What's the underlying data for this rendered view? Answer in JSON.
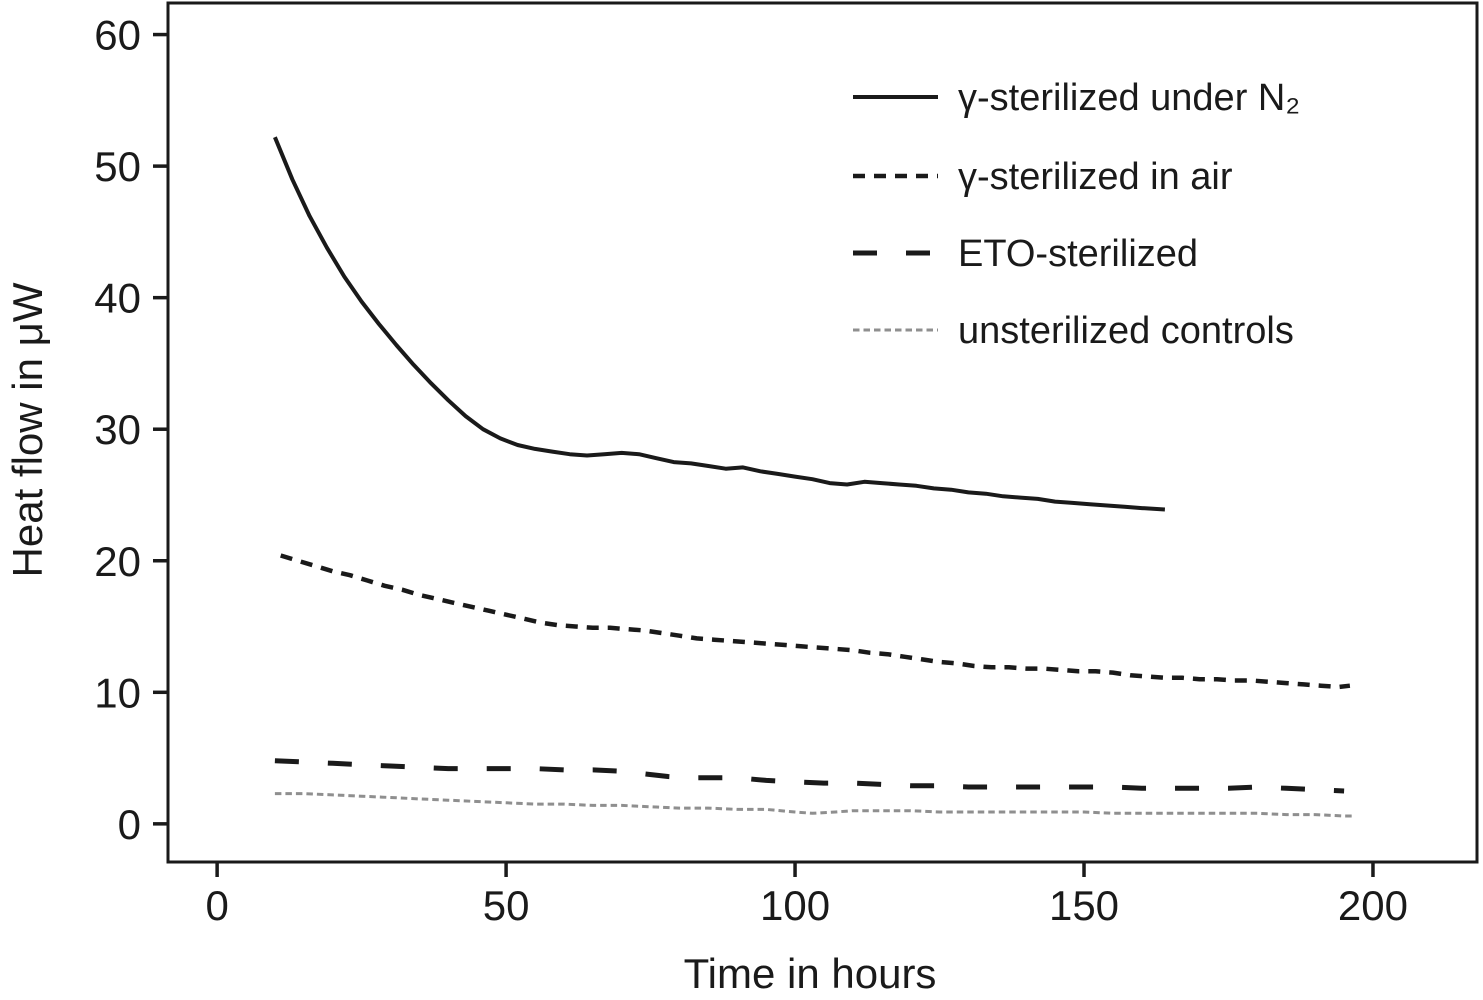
{
  "chart_data": {
    "type": "line",
    "title": "",
    "xlabel": "Time in hours",
    "ylabel": "Heat flow in μW",
    "xlim": [
      -8.5,
      218
    ],
    "ylim": [
      -2.9,
      62.4
    ],
    "x_ticks": [
      0,
      50,
      100,
      150,
      200
    ],
    "y_ticks": [
      0,
      10,
      20,
      30,
      40,
      50,
      60
    ],
    "grid": false,
    "legend_position": "top-right-inside",
    "frame_color": "#1a1a1a",
    "series": [
      {
        "name": "γ-sterilized under N₂",
        "style": "solid",
        "color": "#1a1a1a",
        "points": [
          [
            10,
            52.2
          ],
          [
            13,
            49.0
          ],
          [
            16,
            46.2
          ],
          [
            19,
            43.8
          ],
          [
            22,
            41.6
          ],
          [
            25,
            39.7
          ],
          [
            28,
            38.0
          ],
          [
            31,
            36.4
          ],
          [
            34,
            34.9
          ],
          [
            37,
            33.5
          ],
          [
            40,
            32.2
          ],
          [
            43,
            31.0
          ],
          [
            46,
            30.0
          ],
          [
            49,
            29.3
          ],
          [
            52,
            28.8
          ],
          [
            55,
            28.5
          ],
          [
            58,
            28.3
          ],
          [
            61,
            28.1
          ],
          [
            64,
            28.0
          ],
          [
            67,
            28.1
          ],
          [
            70,
            28.2
          ],
          [
            73,
            28.1
          ],
          [
            76,
            27.8
          ],
          [
            79,
            27.5
          ],
          [
            82,
            27.4
          ],
          [
            85,
            27.2
          ],
          [
            88,
            27.0
          ],
          [
            91,
            27.1
          ],
          [
            94,
            26.8
          ],
          [
            97,
            26.6
          ],
          [
            100,
            26.4
          ],
          [
            103,
            26.2
          ],
          [
            106,
            25.9
          ],
          [
            109,
            25.8
          ],
          [
            112,
            26.0
          ],
          [
            115,
            25.9
          ],
          [
            118,
            25.8
          ],
          [
            121,
            25.7
          ],
          [
            124,
            25.5
          ],
          [
            127,
            25.4
          ],
          [
            130,
            25.2
          ],
          [
            133,
            25.1
          ],
          [
            136,
            24.9
          ],
          [
            139,
            24.8
          ],
          [
            142,
            24.7
          ],
          [
            145,
            24.5
          ],
          [
            148,
            24.4
          ],
          [
            151,
            24.3
          ],
          [
            154,
            24.2
          ],
          [
            157,
            24.1
          ],
          [
            160,
            24.0
          ],
          [
            164,
            23.9
          ]
        ]
      },
      {
        "name": "γ-sterilized in air",
        "style": "short-dash",
        "color": "#1a1a1a",
        "points": [
          [
            11,
            20.4
          ],
          [
            14,
            20.0
          ],
          [
            17,
            19.6
          ],
          [
            20,
            19.2
          ],
          [
            23,
            18.9
          ],
          [
            26,
            18.5
          ],
          [
            29,
            18.1
          ],
          [
            32,
            17.8
          ],
          [
            35,
            17.4
          ],
          [
            38,
            17.1
          ],
          [
            41,
            16.8
          ],
          [
            44,
            16.5
          ],
          [
            47,
            16.2
          ],
          [
            50,
            15.9
          ],
          [
            53,
            15.6
          ],
          [
            56,
            15.3
          ],
          [
            59,
            15.1
          ],
          [
            62,
            15.0
          ],
          [
            65,
            14.9
          ],
          [
            68,
            14.9
          ],
          [
            71,
            14.8
          ],
          [
            74,
            14.7
          ],
          [
            77,
            14.5
          ],
          [
            80,
            14.3
          ],
          [
            83,
            14.1
          ],
          [
            86,
            14.0
          ],
          [
            89,
            13.9
          ],
          [
            92,
            13.8
          ],
          [
            95,
            13.7
          ],
          [
            98,
            13.6
          ],
          [
            101,
            13.5
          ],
          [
            104,
            13.4
          ],
          [
            107,
            13.3
          ],
          [
            110,
            13.2
          ],
          [
            113,
            13.0
          ],
          [
            116,
            12.9
          ],
          [
            119,
            12.7
          ],
          [
            122,
            12.5
          ],
          [
            125,
            12.3
          ],
          [
            128,
            12.2
          ],
          [
            131,
            12.0
          ],
          [
            134,
            11.9
          ],
          [
            137,
            11.9
          ],
          [
            140,
            11.8
          ],
          [
            143,
            11.8
          ],
          [
            146,
            11.7
          ],
          [
            149,
            11.6
          ],
          [
            152,
            11.6
          ],
          [
            155,
            11.5
          ],
          [
            158,
            11.3
          ],
          [
            161,
            11.2
          ],
          [
            164,
            11.1
          ],
          [
            167,
            11.1
          ],
          [
            170,
            11.0
          ],
          [
            173,
            11.0
          ],
          [
            176,
            10.9
          ],
          [
            179,
            10.9
          ],
          [
            182,
            10.8
          ],
          [
            185,
            10.7
          ],
          [
            188,
            10.6
          ],
          [
            191,
            10.5
          ],
          [
            194,
            10.4
          ],
          [
            196,
            10.5
          ]
        ]
      },
      {
        "name": "ETO-sterilized",
        "style": "long-dash",
        "color": "#1a1a1a",
        "points": [
          [
            10,
            4.8
          ],
          [
            15,
            4.7
          ],
          [
            20,
            4.6
          ],
          [
            25,
            4.5
          ],
          [
            30,
            4.4
          ],
          [
            35,
            4.3
          ],
          [
            40,
            4.2
          ],
          [
            45,
            4.2
          ],
          [
            50,
            4.2
          ],
          [
            55,
            4.2
          ],
          [
            60,
            4.1
          ],
          [
            65,
            4.1
          ],
          [
            70,
            4.0
          ],
          [
            74,
            3.8
          ],
          [
            78,
            3.6
          ],
          [
            82,
            3.5
          ],
          [
            86,
            3.5
          ],
          [
            90,
            3.5
          ],
          [
            95,
            3.3
          ],
          [
            100,
            3.2
          ],
          [
            105,
            3.1
          ],
          [
            110,
            3.1
          ],
          [
            115,
            3.0
          ],
          [
            120,
            2.9
          ],
          [
            125,
            2.9
          ],
          [
            130,
            2.8
          ],
          [
            135,
            2.8
          ],
          [
            140,
            2.8
          ],
          [
            145,
            2.8
          ],
          [
            150,
            2.8
          ],
          [
            155,
            2.8
          ],
          [
            160,
            2.7
          ],
          [
            165,
            2.7
          ],
          [
            170,
            2.7
          ],
          [
            175,
            2.7
          ],
          [
            180,
            2.8
          ],
          [
            185,
            2.7
          ],
          [
            190,
            2.6
          ],
          [
            195,
            2.5
          ]
        ]
      },
      {
        "name": "unsterilized controls",
        "style": "fine-dash",
        "color": "#8f8f8f",
        "points": [
          [
            10,
            2.3
          ],
          [
            15,
            2.3
          ],
          [
            20,
            2.2
          ],
          [
            25,
            2.1
          ],
          [
            30,
            2.0
          ],
          [
            35,
            1.9
          ],
          [
            40,
            1.8
          ],
          [
            45,
            1.7
          ],
          [
            50,
            1.6
          ],
          [
            55,
            1.5
          ],
          [
            60,
            1.5
          ],
          [
            65,
            1.4
          ],
          [
            70,
            1.4
          ],
          [
            75,
            1.3
          ],
          [
            80,
            1.2
          ],
          [
            85,
            1.2
          ],
          [
            90,
            1.1
          ],
          [
            95,
            1.1
          ],
          [
            100,
            0.9
          ],
          [
            103,
            0.8
          ],
          [
            107,
            0.9
          ],
          [
            110,
            1.0
          ],
          [
            115,
            1.0
          ],
          [
            120,
            1.0
          ],
          [
            125,
            0.9
          ],
          [
            130,
            0.9
          ],
          [
            135,
            0.9
          ],
          [
            140,
            0.9
          ],
          [
            145,
            0.9
          ],
          [
            150,
            0.9
          ],
          [
            155,
            0.8
          ],
          [
            160,
            0.8
          ],
          [
            165,
            0.8
          ],
          [
            170,
            0.8
          ],
          [
            175,
            0.8
          ],
          [
            180,
            0.8
          ],
          [
            185,
            0.7
          ],
          [
            190,
            0.7
          ],
          [
            195,
            0.6
          ],
          [
            197,
            0.6
          ]
        ]
      }
    ]
  }
}
